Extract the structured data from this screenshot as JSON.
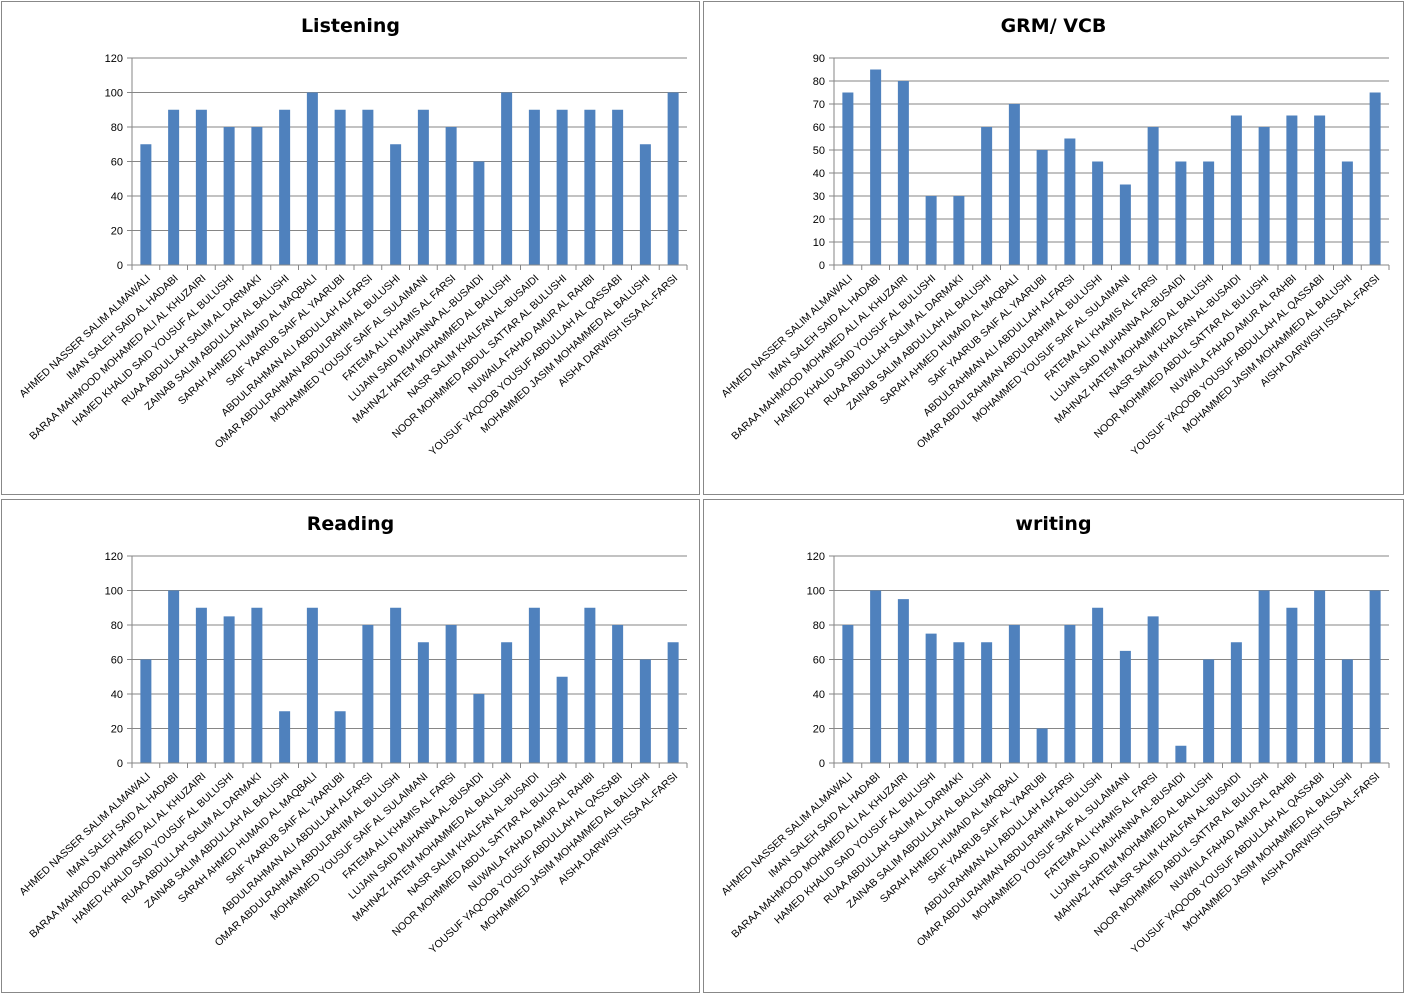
{
  "students": [
    "AHMED NASSER SALIM ALMAWALI",
    "IMAN SALEH SAID AL HADABI",
    "BARAA MAHMOOD MOHAMED ALI AL KHUZAIRI",
    "HAMED KHALID SAID YOUSUF AL BULUSHI",
    "RUAA ABDULLAH SALIM AL DARMAKI",
    "ZAINAB SALIM ABDULLAH AL BALUSHI",
    "SARAH AHMED HUMAID AL MAQBALI",
    "SAIF YAARUB SAIF AL YAARUBI",
    "ABDULRAHMAN ALI ABDULLAH ALFARSI",
    "OMAR ABDULRAHMAN ABDULRAHIM AL BULUSHI",
    "MOHAMMED YOUSUF SAIF AL SULAIMANI",
    "FATEMA ALI KHAMIS AL FARSI",
    "LUJAIN SAID MUHANNA AL-BUSAIDI",
    "MAHNAZ HATEM MOHAMMED AL BALUSHI",
    "NASR SALIM KHALFAN AL-BUSAIDI",
    "NOOR MOHMMED ABDUL SATTAR AL BULUSHI",
    "NUWAILA FAHAD AMUR AL RAHBI",
    "YOUSUF YAQOOB YOUSUF ABDULLAH AL QASSABI",
    "MOHAMMED JASIM MOHAMMED AL BALUSHI",
    "AISHA DARWISH ISSA AL-FARSI"
  ],
  "bar_color": "#4f81bd",
  "chart_data": [
    {
      "type": "bar",
      "title": "Listening",
      "xlabel": "",
      "ylabel": "",
      "ylim": [
        0,
        120
      ],
      "yticks": [
        0,
        20,
        40,
        60,
        80,
        100,
        120
      ],
      "grid": true,
      "values": [
        70,
        90,
        90,
        80,
        80,
        90,
        100,
        90,
        90,
        70,
        90,
        80,
        60,
        100,
        90,
        90,
        90,
        90,
        70,
        100
      ]
    },
    {
      "type": "bar",
      "title": "GRM/ VCB",
      "xlabel": "",
      "ylabel": "",
      "ylim": [
        0,
        90
      ],
      "yticks": [
        0,
        10,
        20,
        30,
        40,
        50,
        60,
        70,
        80,
        90
      ],
      "grid": true,
      "values": [
        75,
        85,
        80,
        30,
        30,
        60,
        70,
        50,
        55,
        45,
        35,
        60,
        45,
        45,
        65,
        60,
        65,
        65,
        45,
        75
      ]
    },
    {
      "type": "bar",
      "title": "Reading",
      "xlabel": "",
      "ylabel": "",
      "ylim": [
        0,
        120
      ],
      "yticks": [
        0,
        20,
        40,
        60,
        80,
        100,
        120
      ],
      "grid": true,
      "values": [
        60,
        100,
        90,
        85,
        90,
        30,
        90,
        30,
        80,
        90,
        70,
        80,
        40,
        70,
        90,
        50,
        90,
        80,
        60,
        70
      ]
    },
    {
      "type": "bar",
      "title": "writing",
      "xlabel": "",
      "ylabel": "",
      "ylim": [
        0,
        120
      ],
      "yticks": [
        0,
        20,
        40,
        60,
        80,
        100,
        120
      ],
      "grid": true,
      "values": [
        80,
        100,
        95,
        75,
        70,
        70,
        80,
        20,
        80,
        90,
        65,
        85,
        10,
        60,
        70,
        100,
        90,
        100,
        60,
        100
      ]
    }
  ]
}
